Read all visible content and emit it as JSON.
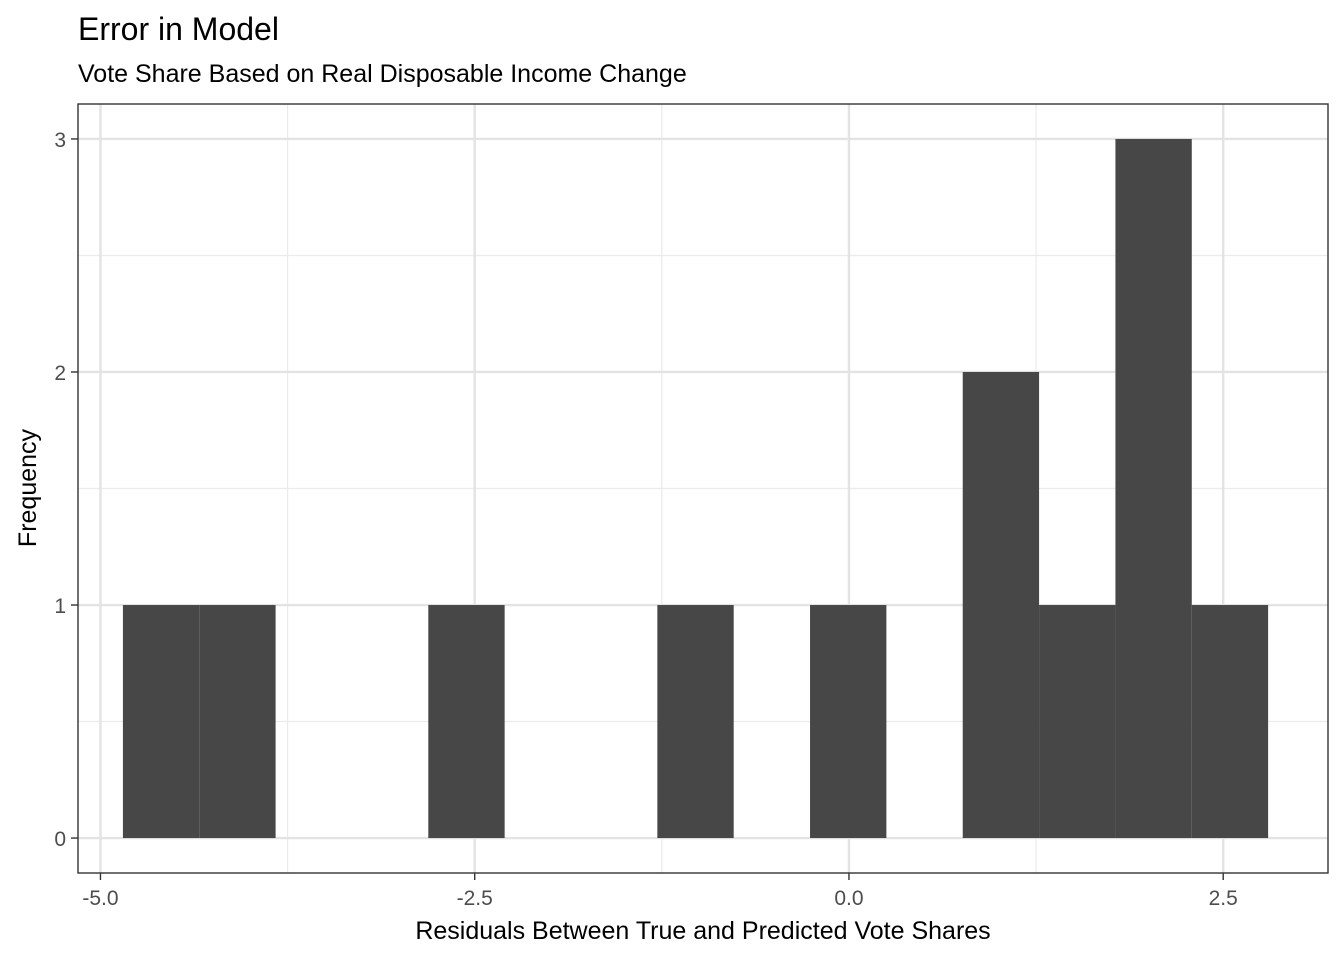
{
  "chart_data": {
    "type": "bar",
    "title": "Error in Model",
    "subtitle": "Vote Share Based on Real Disposable Income Change",
    "xlabel": "Residuals Between True and Predicted Vote Shares",
    "ylabel": "Frequency",
    "xlim": [
      -5.15,
      3.2
    ],
    "ylim": [
      -0.15,
      3.15
    ],
    "x_ticks": [
      -5.0,
      -2.5,
      0.0,
      2.5
    ],
    "x_tick_labels": [
      "-5.0",
      "-2.5",
      "0.0",
      "2.5"
    ],
    "y_ticks": [
      0,
      1,
      2,
      3
    ],
    "y_tick_labels": [
      "0",
      "1",
      "2",
      "3"
    ],
    "x_minor_gridlines": [
      -3.75,
      -1.25,
      1.25
    ],
    "y_minor_gridlines": [
      0.5,
      1.5,
      2.5
    ],
    "grid": true,
    "bar_color": "#474747",
    "bins": [
      {
        "x0": -4.85,
        "x1": -4.34,
        "count": 1
      },
      {
        "x0": -4.34,
        "x1": -3.83,
        "count": 1
      },
      {
        "x0": -3.83,
        "x1": -3.32,
        "count": 0
      },
      {
        "x0": -3.32,
        "x1": -2.81,
        "count": 0
      },
      {
        "x0": -2.81,
        "x1": -2.3,
        "count": 1
      },
      {
        "x0": -2.3,
        "x1": -1.79,
        "count": 0
      },
      {
        "x0": -1.79,
        "x1": -1.28,
        "count": 0
      },
      {
        "x0": -1.28,
        "x1": -0.77,
        "count": 1
      },
      {
        "x0": -0.77,
        "x1": -0.26,
        "count": 0
      },
      {
        "x0": -0.26,
        "x1": 0.25,
        "count": 1
      },
      {
        "x0": 0.25,
        "x1": 0.76,
        "count": 0
      },
      {
        "x0": 0.76,
        "x1": 1.27,
        "count": 2
      },
      {
        "x0": 1.27,
        "x1": 1.78,
        "count": 1
      },
      {
        "x0": 1.78,
        "x1": 2.29,
        "count": 3
      },
      {
        "x0": 2.29,
        "x1": 2.8,
        "count": 1
      }
    ]
  }
}
